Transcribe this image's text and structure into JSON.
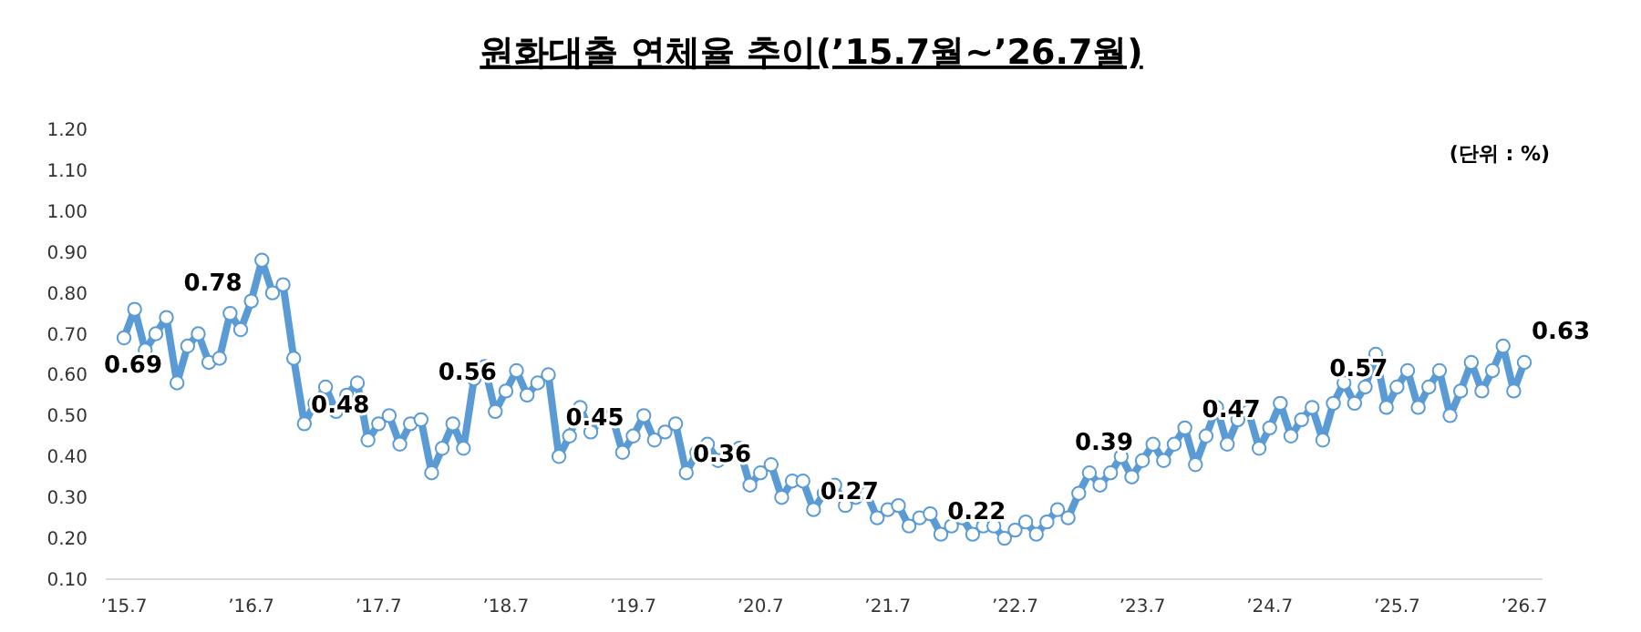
{
  "chart_data": {
    "type": "line",
    "title": "원화대출 연체율 추이(’15.7월~’26.7월)",
    "annotations": [
      "(단위 : %)"
    ],
    "categories": [
      "’15.7",
      null,
      null,
      null,
      null,
      null,
      null,
      null,
      null,
      null,
      null,
      null,
      "’16.7",
      null,
      null,
      null,
      null,
      null,
      null,
      null,
      null,
      null,
      null,
      null,
      "’17.7",
      null,
      null,
      null,
      null,
      null,
      null,
      null,
      null,
      null,
      null,
      null,
      "’18.7",
      null,
      null,
      null,
      null,
      null,
      null,
      null,
      null,
      null,
      null,
      null,
      "’19.7",
      null,
      null,
      null,
      null,
      null,
      null,
      null,
      null,
      null,
      null,
      null,
      "’20.7",
      null,
      null,
      null,
      null,
      null,
      null,
      null,
      null,
      null,
      null,
      null,
      "’21.7",
      null,
      null,
      null,
      null,
      null,
      null,
      null,
      null,
      null,
      null,
      null,
      "’22.7",
      null,
      null,
      null,
      null,
      null,
      null,
      null,
      null,
      null,
      null,
      null,
      "’23.7",
      null,
      null,
      null,
      null,
      null,
      null,
      null,
      null,
      null,
      null,
      null,
      "’24.7",
      null,
      null,
      null,
      null,
      null,
      null,
      null,
      null,
      null,
      null,
      null,
      "’25.7",
      null,
      null,
      null,
      null,
      null,
      null,
      null,
      null,
      null,
      null,
      null,
      "’26.7"
    ],
    "series": [
      {
        "color": "#5b9bd5",
        "values": [
          0.69,
          0.76,
          0.66,
          0.7,
          0.74,
          0.58,
          0.67,
          0.7,
          0.63,
          0.64,
          0.75,
          0.71,
          0.78,
          0.88,
          0.8,
          0.82,
          0.64,
          0.48,
          0.53,
          0.57,
          0.51,
          0.55,
          0.58,
          0.44,
          0.48,
          0.5,
          0.43,
          0.48,
          0.49,
          0.36,
          0.42,
          0.48,
          0.42,
          0.59,
          0.62,
          0.51,
          0.56,
          0.61,
          0.55,
          0.58,
          0.6,
          0.4,
          0.45,
          0.52,
          0.46,
          0.49,
          0.5,
          0.41,
          0.45,
          0.5,
          0.44,
          0.46,
          0.48,
          0.36,
          0.41,
          0.43,
          0.39,
          0.4,
          0.42,
          0.33,
          0.36,
          0.38,
          0.3,
          0.34,
          0.34,
          0.27,
          0.31,
          0.33,
          0.28,
          0.3,
          0.31,
          0.25,
          0.27,
          0.28,
          0.23,
          0.25,
          0.26,
          0.21,
          0.23,
          0.25,
          0.21,
          0.23,
          0.23,
          0.2,
          0.22,
          0.24,
          0.21,
          0.24,
          0.27,
          0.25,
          0.31,
          0.36,
          0.33,
          0.36,
          0.4,
          0.35,
          0.39,
          0.43,
          0.39,
          0.43,
          0.47,
          0.38,
          0.45,
          0.52,
          0.43,
          0.49,
          0.51,
          0.42,
          0.47,
          0.53,
          0.45,
          0.49,
          0.52,
          0.44,
          0.53,
          0.58,
          0.53,
          0.57,
          0.65,
          0.52,
          0.57,
          0.61,
          0.52,
          0.57,
          0.61,
          0.5,
          0.56,
          0.63,
          0.56,
          0.61,
          0.67,
          0.56,
          0.63
        ],
        "value_labels": [
          "0.69",
          null,
          null,
          null,
          null,
          null,
          null,
          null,
          null,
          null,
          null,
          null,
          "0.78",
          null,
          null,
          null,
          null,
          null,
          null,
          null,
          null,
          null,
          null,
          null,
          "0.48",
          null,
          null,
          null,
          null,
          null,
          null,
          null,
          null,
          null,
          null,
          null,
          "0.56",
          null,
          null,
          null,
          null,
          null,
          null,
          null,
          null,
          null,
          null,
          null,
          "0.45",
          null,
          null,
          null,
          null,
          null,
          null,
          null,
          null,
          null,
          null,
          null,
          "0.36",
          null,
          null,
          null,
          null,
          null,
          null,
          null,
          null,
          null,
          null,
          null,
          "0.27",
          null,
          null,
          null,
          null,
          null,
          null,
          null,
          null,
          null,
          null,
          null,
          "0.22",
          null,
          null,
          null,
          null,
          null,
          null,
          null,
          null,
          null,
          null,
          null,
          "0.39",
          null,
          null,
          null,
          null,
          null,
          null,
          null,
          null,
          null,
          null,
          null,
          "0.47",
          null,
          null,
          null,
          null,
          null,
          null,
          null,
          null,
          null,
          null,
          null,
          "0.57",
          null,
          null,
          null,
          null,
          null,
          null,
          null,
          null,
          null,
          null,
          null,
          "0.63"
        ]
      }
    ],
    "ylim": [
      0.1,
      1.2
    ],
    "yticks": [
      {
        "value": 0.1,
        "label": "0.10"
      },
      {
        "value": 0.2,
        "label": "0.20"
      },
      {
        "value": 0.3,
        "label": "0.30"
      },
      {
        "value": 0.4,
        "label": "0.40"
      },
      {
        "value": 0.5,
        "label": "0.50"
      },
      {
        "value": 0.6,
        "label": "0.60"
      },
      {
        "value": 0.7,
        "label": "0.70"
      },
      {
        "value": 0.8,
        "label": "0.80"
      },
      {
        "value": 0.9,
        "label": "0.90"
      },
      {
        "value": 1.0,
        "label": "1.00"
      },
      {
        "value": 1.1,
        "label": "1.10"
      },
      {
        "value": 1.2,
        "label": "1.20"
      }
    ],
    "marker": "circle",
    "line_style": "solid",
    "grid": false
  }
}
